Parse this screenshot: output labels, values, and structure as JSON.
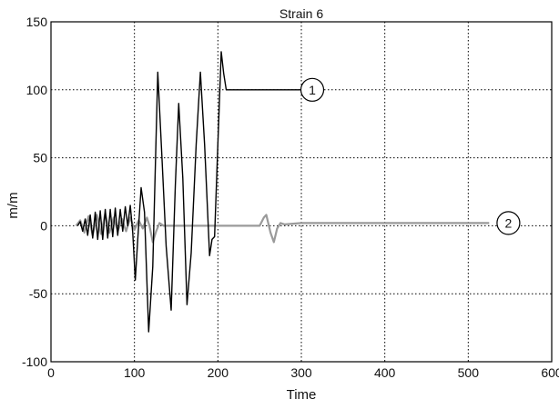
{
  "chart_data": {
    "type": "line",
    "title": "Strain 6",
    "xlabel": "Time",
    "ylabel": "m/m",
    "xlim": [
      0,
      600
    ],
    "ylim": [
      -100,
      150
    ],
    "x_ticks": [
      0,
      100,
      200,
      300,
      400,
      500,
      600
    ],
    "y_ticks": [
      -100,
      -50,
      0,
      50,
      100,
      150
    ],
    "grid": true,
    "series": [
      {
        "name": "1",
        "color": "#000000",
        "points": [
          [
            32,
            0
          ],
          [
            35,
            3
          ],
          [
            38,
            -4
          ],
          [
            41,
            5
          ],
          [
            44,
            -7
          ],
          [
            47,
            8
          ],
          [
            50,
            -9
          ],
          [
            53,
            10
          ],
          [
            56,
            -10
          ],
          [
            59,
            11
          ],
          [
            62,
            -10
          ],
          [
            65,
            12
          ],
          [
            68,
            -9
          ],
          [
            71,
            12
          ],
          [
            74,
            -8
          ],
          [
            77,
            13
          ],
          [
            80,
            -7
          ],
          [
            83,
            12
          ],
          [
            86,
            -4
          ],
          [
            89,
            14
          ],
          [
            92,
            0
          ],
          [
            95,
            15
          ],
          [
            98,
            -5
          ],
          [
            101,
            -40
          ],
          [
            104,
            -10
          ],
          [
            108,
            28
          ],
          [
            112,
            10
          ],
          [
            117,
            -78
          ],
          [
            122,
            -30
          ],
          [
            128,
            113
          ],
          [
            133,
            50
          ],
          [
            138,
            -15
          ],
          [
            144,
            -62
          ],
          [
            149,
            30
          ],
          [
            153,
            90
          ],
          [
            158,
            35
          ],
          [
            163,
            -58
          ],
          [
            168,
            -20
          ],
          [
            174,
            60
          ],
          [
            179,
            113
          ],
          [
            184,
            60
          ],
          [
            190,
            -22
          ],
          [
            193,
            -10
          ],
          [
            196,
            -8
          ],
          [
            200,
            60
          ],
          [
            204,
            128
          ],
          [
            207,
            112
          ],
          [
            210,
            100
          ],
          [
            228,
            100
          ],
          [
            250,
            100
          ],
          [
            275,
            100
          ],
          [
            302,
            100
          ]
        ]
      },
      {
        "name": "2",
        "color": "#9a9a9a",
        "points": [
          [
            30,
            0
          ],
          [
            35,
            4
          ],
          [
            40,
            -5
          ],
          [
            45,
            7
          ],
          [
            50,
            -7
          ],
          [
            55,
            8
          ],
          [
            60,
            -6
          ],
          [
            65,
            9
          ],
          [
            70,
            -5
          ],
          [
            75,
            6
          ],
          [
            80,
            -4
          ],
          [
            85,
            5
          ],
          [
            90,
            -4
          ],
          [
            95,
            6
          ],
          [
            100,
            -3
          ],
          [
            105,
            4
          ],
          [
            110,
            -2
          ],
          [
            115,
            6
          ],
          [
            118,
            0
          ],
          [
            122,
            -12
          ],
          [
            126,
            -4
          ],
          [
            130,
            2
          ],
          [
            135,
            0
          ],
          [
            150,
            0
          ],
          [
            180,
            0
          ],
          [
            200,
            0
          ],
          [
            230,
            0
          ],
          [
            250,
            0
          ],
          [
            255,
            6
          ],
          [
            258,
            8
          ],
          [
            263,
            -5
          ],
          [
            267,
            -12
          ],
          [
            271,
            -2
          ],
          [
            275,
            2
          ],
          [
            280,
            1
          ],
          [
            300,
            2
          ],
          [
            350,
            2
          ],
          [
            400,
            2
          ],
          [
            450,
            2
          ],
          [
            500,
            2
          ],
          [
            525,
            2
          ]
        ]
      }
    ],
    "callouts": [
      {
        "label": "1",
        "series": "1",
        "at": [
          300,
          100
        ]
      },
      {
        "label": "2",
        "series": "2",
        "at": [
          535,
          2
        ]
      }
    ]
  }
}
